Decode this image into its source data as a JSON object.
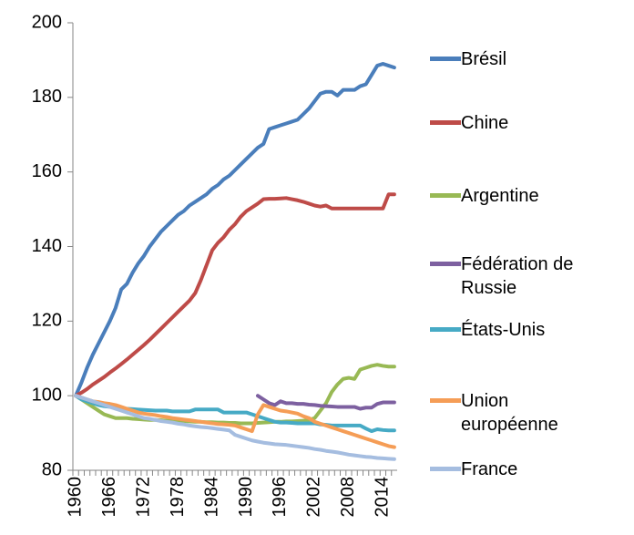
{
  "chart_data": {
    "type": "line",
    "categories": [
      "1960",
      null,
      null,
      null,
      null,
      null,
      "1966",
      null,
      null,
      null,
      null,
      null,
      "1972",
      null,
      null,
      null,
      null,
      null,
      "1978",
      null,
      null,
      null,
      null,
      null,
      "1984",
      null,
      null,
      null,
      null,
      null,
      "1990",
      null,
      null,
      null,
      null,
      null,
      "1996",
      null,
      null,
      null,
      null,
      null,
      "2002",
      null,
      null,
      null,
      null,
      null,
      "2008",
      null,
      null,
      null,
      null,
      null,
      "2014",
      null,
      null
    ],
    "ylim": [
      80,
      200
    ],
    "yticks": [
      80,
      100,
      120,
      140,
      160,
      180,
      200
    ],
    "series": [
      {
        "name": "Brésil",
        "color": "#4a7ebb",
        "values": [
          100,
          103.5,
          107.5,
          111,
          114,
          117,
          120,
          123.5,
          128.5,
          130,
          133,
          135.5,
          137.5,
          140,
          142,
          144,
          145.5,
          147,
          148.5,
          149.5,
          151,
          152,
          153,
          154,
          155.5,
          156.5,
          158,
          159,
          160.5,
          162,
          163.5,
          165,
          166.5,
          167.5,
          171.5,
          172,
          172.5,
          173,
          173.5,
          174,
          175.5,
          177,
          179,
          181,
          181.5,
          181.5,
          180.5,
          182,
          182,
          182,
          183,
          183.5,
          186,
          188.5,
          189,
          188.5,
          188
        ]
      },
      {
        "name": "Chine",
        "color": "#be4b48",
        "values": [
          100,
          100.8,
          101.8,
          103,
          104,
          105,
          106.2,
          107.3,
          108.5,
          109.7,
          111,
          112.3,
          113.6,
          115,
          116.5,
          118,
          119.5,
          121,
          122.5,
          124,
          125.5,
          127.5,
          131,
          135,
          139,
          141,
          142.5,
          144.5,
          146,
          148,
          149.5,
          150.5,
          151.5,
          152.7,
          152.8,
          152.8,
          152.9,
          153,
          152.7,
          152.4,
          152,
          151.5,
          151,
          150.7,
          151,
          150.2,
          150.2,
          150.2,
          150.2,
          150.2,
          150.2,
          150.2,
          150.2,
          150.2,
          150.2,
          154,
          154
        ]
      },
      {
        "name": "Argentine",
        "color": "#98b954",
        "values": [
          100,
          99,
          98,
          97,
          96,
          95,
          94.5,
          94,
          94,
          94,
          93.8,
          93.7,
          93.6,
          93.5,
          93.5,
          93.4,
          93.3,
          93.3,
          93.2,
          93.2,
          93.1,
          93,
          93,
          92.9,
          92.9,
          92.8,
          92.8,
          92.7,
          92.7,
          92.6,
          92.6,
          92.6,
          92.7,
          92.8,
          92.9,
          93,
          93,
          93.1,
          93.1,
          93.2,
          93.3,
          93.5,
          94,
          96,
          98,
          101,
          103,
          104.5,
          104.8,
          104.5,
          107,
          107.5,
          108,
          108.3,
          108,
          107.8,
          107.8
        ]
      },
      {
        "name": "Fédération de Russie",
        "color": "#7d60a0",
        "values": [
          null,
          null,
          null,
          null,
          null,
          null,
          null,
          null,
          null,
          null,
          null,
          null,
          null,
          null,
          null,
          null,
          null,
          null,
          null,
          null,
          null,
          null,
          null,
          null,
          null,
          null,
          null,
          null,
          null,
          null,
          null,
          null,
          100,
          99,
          98,
          97.5,
          98.5,
          98,
          98,
          97.8,
          97.8,
          97.6,
          97.5,
          97.3,
          97.2,
          97.1,
          97,
          97,
          97,
          97,
          96.5,
          96.8,
          96.8,
          97.8,
          98.2,
          98.2,
          98.2
        ]
      },
      {
        "name": "États-Unis",
        "color": "#46aac5",
        "values": [
          100,
          99,
          98.5,
          98,
          97.5,
          97.2,
          97,
          96.8,
          96.6,
          96.5,
          96.4,
          96.3,
          96.2,
          96.1,
          96,
          96,
          96,
          95.8,
          95.8,
          95.8,
          95.8,
          96.3,
          96.3,
          96.3,
          96.3,
          96.3,
          95.5,
          95.5,
          95.5,
          95.5,
          95.5,
          95,
          94.5,
          94,
          93.5,
          93,
          92.8,
          92.8,
          92.7,
          92.6,
          92.6,
          92.6,
          92.6,
          92.3,
          92.2,
          92,
          92,
          92,
          92,
          92,
          92,
          91.2,
          90.5,
          91,
          90.8,
          90.7,
          90.7
        ]
      },
      {
        "name": "Union européenne",
        "color": "#f59d56",
        "values": [
          100,
          99.5,
          99,
          98.5,
          98.3,
          98,
          97.8,
          97.5,
          97,
          96.5,
          96,
          95.5,
          95.2,
          95,
          94.8,
          94.5,
          94.3,
          94,
          93.8,
          93.6,
          93.4,
          93.2,
          93,
          92.8,
          92.6,
          92.4,
          92.3,
          92.2,
          92,
          91.5,
          91,
          90.5,
          95,
          97.5,
          97,
          96.5,
          96,
          95.8,
          95.5,
          95.2,
          94.5,
          94,
          93,
          92.5,
          92,
          91.5,
          91,
          90.5,
          90,
          89.5,
          89,
          88.5,
          88,
          87.5,
          87,
          86.5,
          86.2
        ]
      },
      {
        "name": "France",
        "color": "#a5bde0",
        "values": [
          100,
          99.5,
          99,
          98.5,
          98,
          97.5,
          97,
          96.5,
          96,
          95.5,
          95,
          94.5,
          94,
          93.8,
          93.5,
          93.2,
          93,
          92.8,
          92.5,
          92.3,
          92,
          91.8,
          91.6,
          91.5,
          91.3,
          91.1,
          90.9,
          90.7,
          89.5,
          89,
          88.5,
          88,
          87.7,
          87.4,
          87.2,
          87,
          86.9,
          86.8,
          86.6,
          86.4,
          86.2,
          86,
          85.7,
          85.5,
          85.2,
          85,
          84.8,
          84.5,
          84.2,
          84,
          83.8,
          83.6,
          83.5,
          83.3,
          83.2,
          83.1,
          83
        ]
      }
    ]
  }
}
